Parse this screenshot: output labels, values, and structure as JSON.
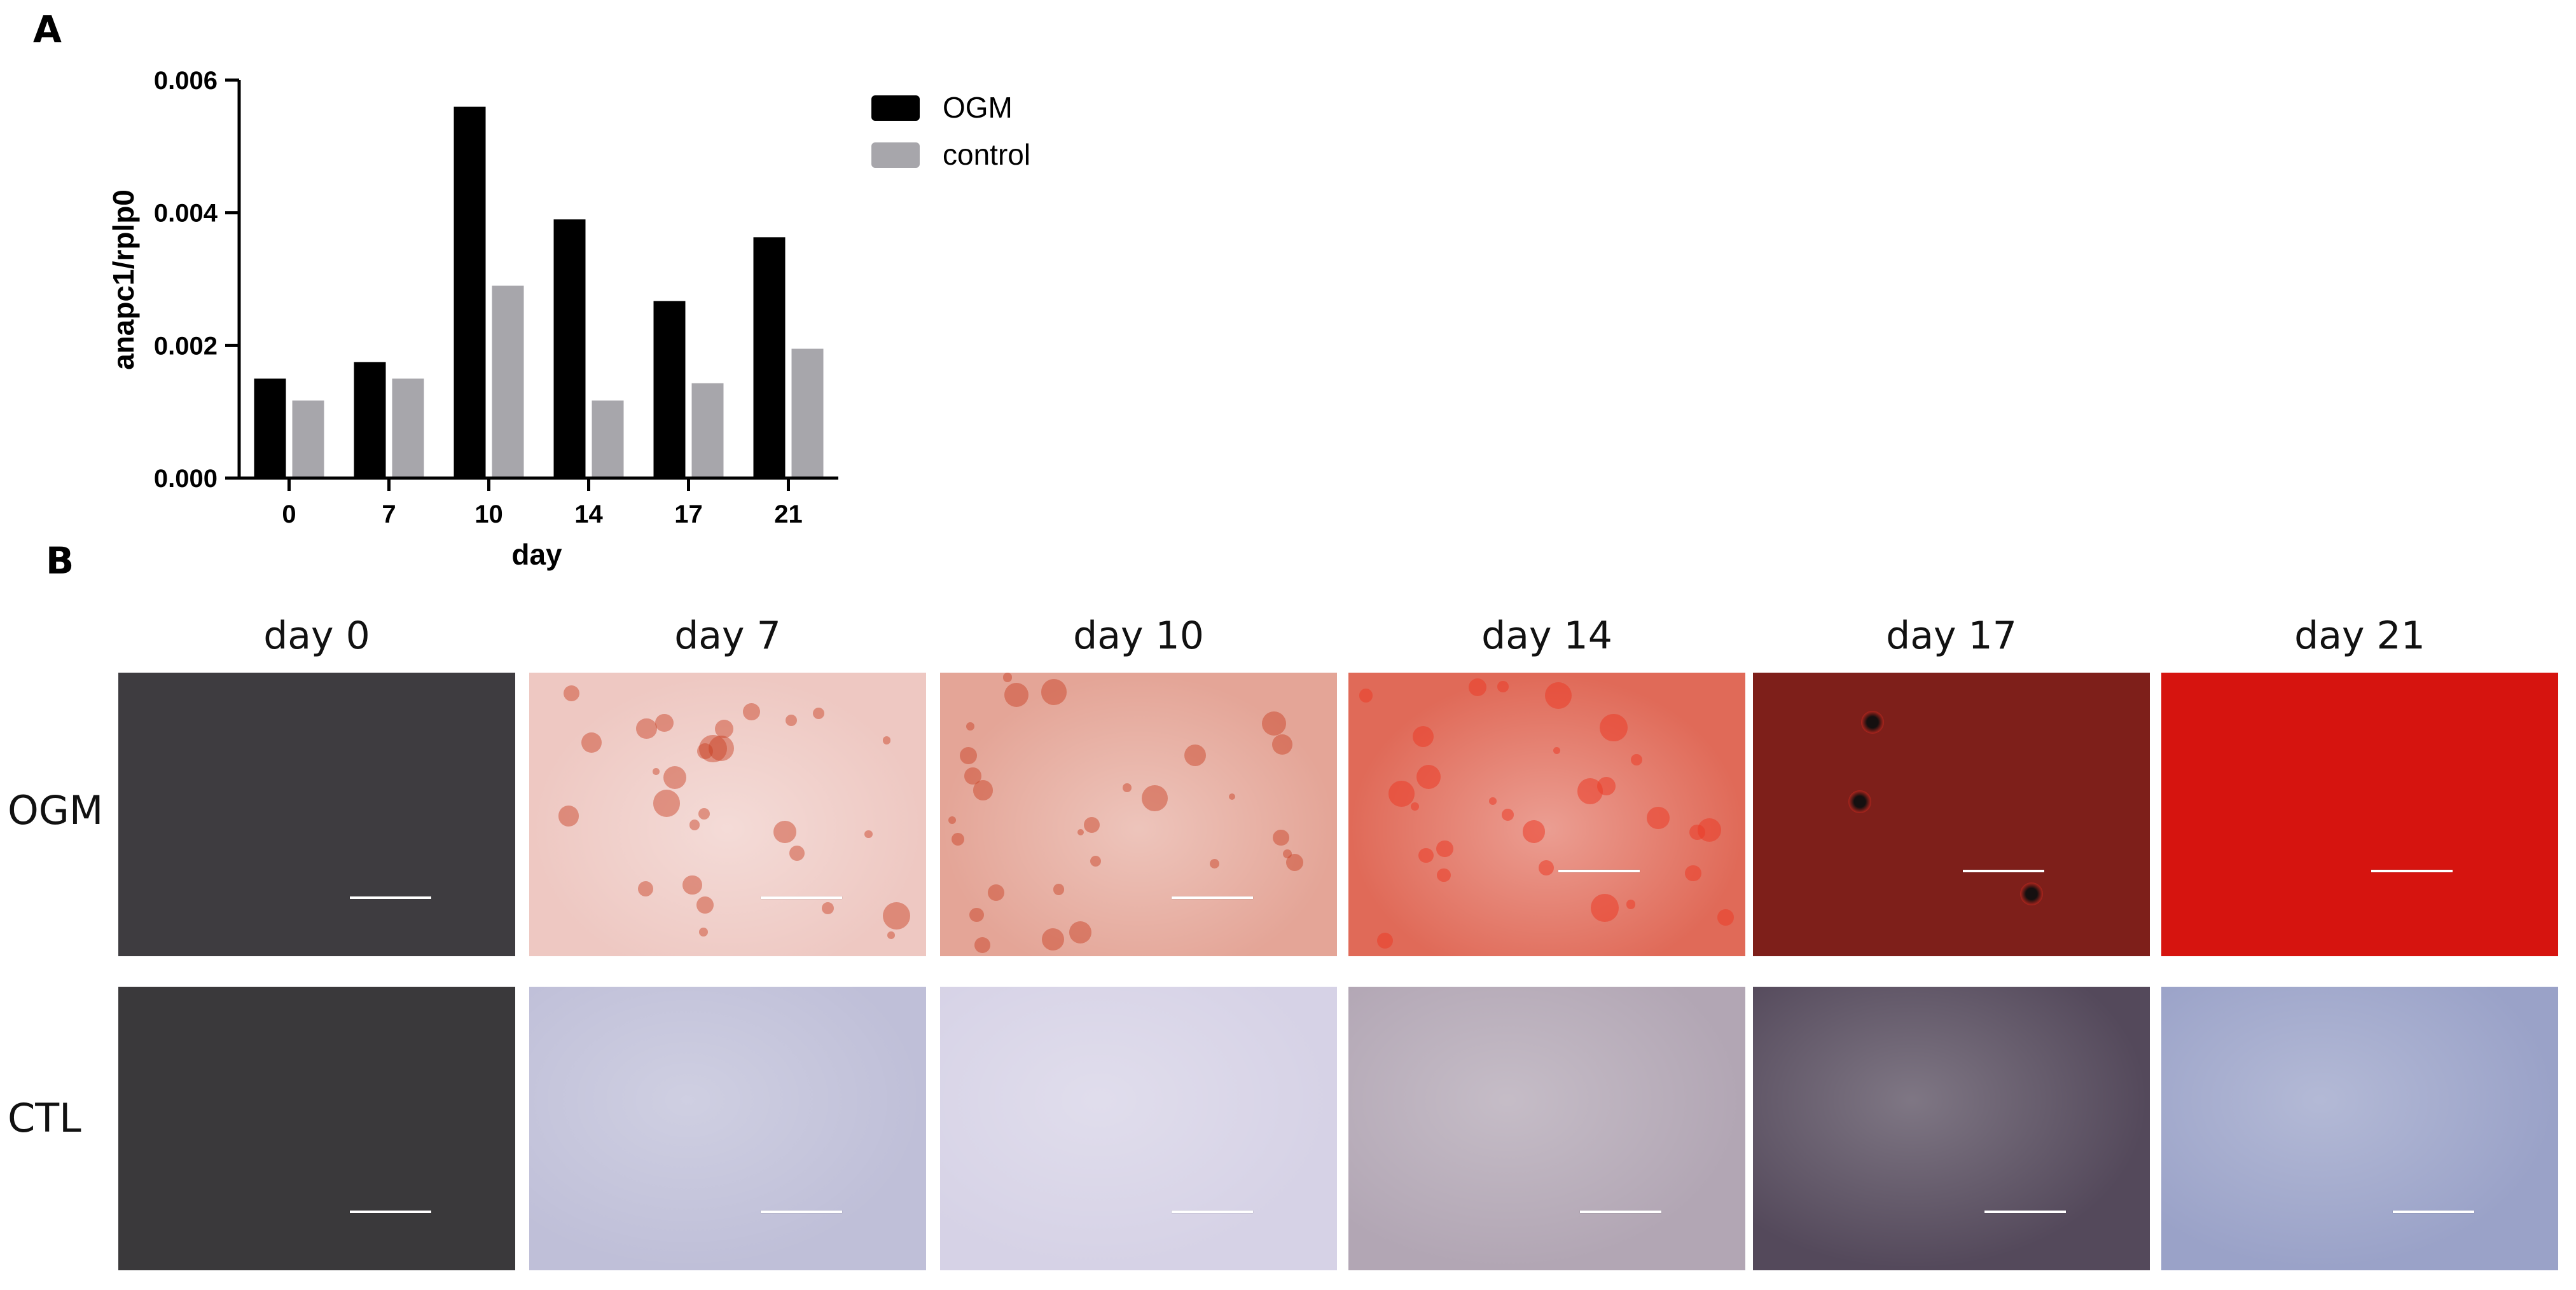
{
  "panel_a_label": "A",
  "panel_b_label": "B",
  "chart_data": {
    "type": "bar",
    "categories": [
      "0",
      "7",
      "10",
      "14",
      "17",
      "21"
    ],
    "series": [
      {
        "name": "OGM",
        "color": "#000000",
        "values": [
          0.0015,
          0.00175,
          0.0056,
          0.0039,
          0.00267,
          0.00363
        ]
      },
      {
        "name": "control",
        "color": "#a7a6ab",
        "values": [
          0.00117,
          0.0015,
          0.0029,
          0.00117,
          0.00143,
          0.00195
        ]
      }
    ],
    "xlabel": "day",
    "ylabel": "anapc1/rplp0",
    "ylim": [
      0,
      0.006
    ],
    "yticks": [
      "0.000",
      "0.002",
      "0.004",
      "0.006"
    ],
    "legend_position": "top-right"
  },
  "micrographs": {
    "columns": [
      "day 0",
      "day 7",
      "day 10",
      "day 14",
      "day 17",
      "day 21"
    ],
    "rows": [
      "OGM",
      "CTL"
    ],
    "ogm_colors": [
      "#3e3c40",
      "#eec8c2",
      "#e4a597",
      "#e06a58",
      "#7e1f1a",
      "#d6140f"
    ],
    "ctl_colors": [
      "#3a393b",
      "#bfbfd8",
      "#d6d2e6",
      "#b2a6b4",
      "#54495b",
      "#9aa2c8"
    ]
  }
}
